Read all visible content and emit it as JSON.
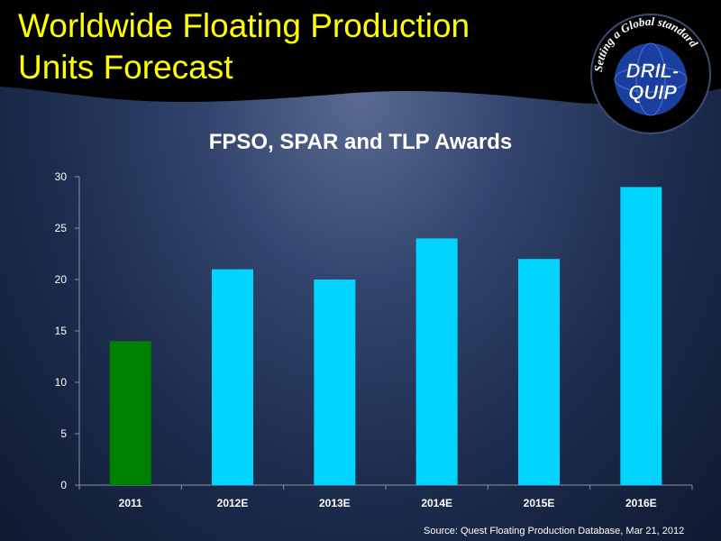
{
  "slide": {
    "title_line1": "Worldwide Floating Production",
    "title_line2": "Units Forecast",
    "source": "Source: Quest Floating Production Database, Mar 21, 2012"
  },
  "logo": {
    "text_top": "Setting a Global standard",
    "text_main1": "DRIL-",
    "text_main2": "QUIP",
    "icon": "globe-logo-icon"
  },
  "colors": {
    "title": "#ffff00",
    "bar_actual": "#008000",
    "bar_estimate": "#00d4ff",
    "header_bg": "#000000"
  },
  "chart_data": {
    "type": "bar",
    "title": "FPSO, SPAR and TLP Awards",
    "categories": [
      "2011",
      "2012E",
      "2013E",
      "2014E",
      "2015E",
      "2016E"
    ],
    "values": [
      14,
      21,
      20,
      24,
      22,
      29
    ],
    "bar_colors": [
      "#008000",
      "#00d4ff",
      "#00d4ff",
      "#00d4ff",
      "#00d4ff",
      "#00d4ff"
    ],
    "ylim": [
      0,
      30
    ],
    "yticks": [
      0,
      5,
      10,
      15,
      20,
      25,
      30
    ],
    "xlabel": "",
    "ylabel": "",
    "grid": false,
    "legend": "none"
  }
}
